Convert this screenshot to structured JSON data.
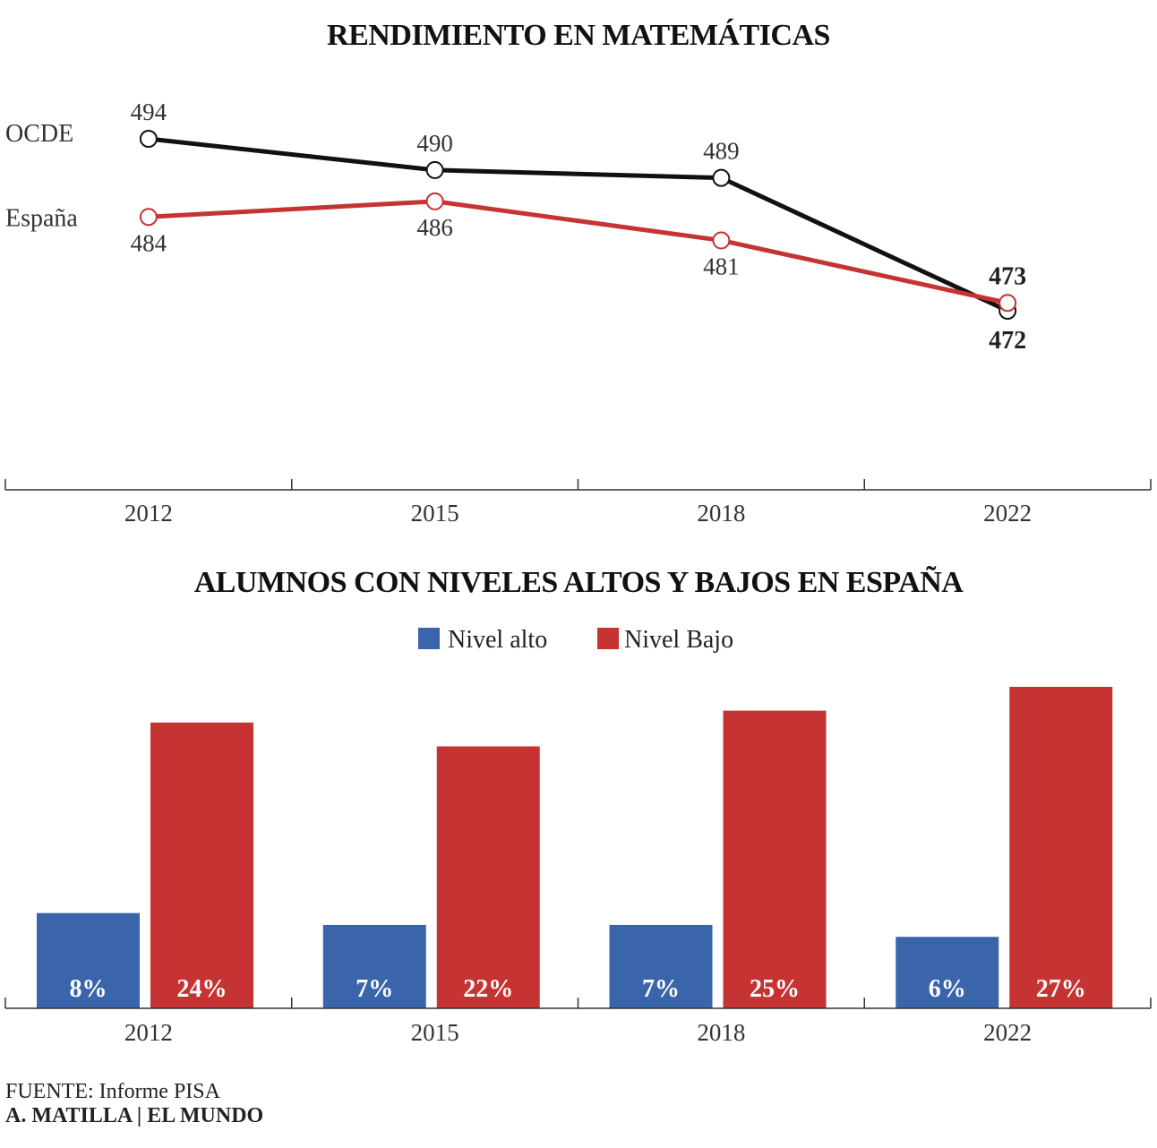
{
  "chart_data": [
    {
      "type": "line",
      "title": "RENDIMIENTO EN MATEMÁTICAS",
      "categories": [
        "2012",
        "2015",
        "2018",
        "2022"
      ],
      "series": [
        {
          "name": "OCDE",
          "values": [
            494,
            490,
            489,
            472
          ],
          "color": "#111111"
        },
        {
          "name": "España",
          "values": [
            484,
            486,
            481,
            473
          ],
          "color": "#c53332"
        }
      ],
      "point_labels": {
        "OCDE": [
          "494",
          "490",
          "489",
          "472"
        ],
        "España": [
          "484",
          "486",
          "481",
          "473"
        ]
      },
      "ylim": [
        455,
        500
      ],
      "grid": false
    },
    {
      "type": "bar",
      "title": "ALUMNOS CON NIVELES ALTOS Y BAJOS EN ESPAÑA",
      "categories": [
        "2012",
        "2015",
        "2018",
        "2022"
      ],
      "series": [
        {
          "name": "Nivel alto",
          "values": [
            8,
            7,
            7,
            6
          ],
          "labels": [
            "8%",
            "7%",
            "7%",
            "6%"
          ],
          "color": "#3a65ab"
        },
        {
          "name": "Nivel Bajo",
          "values": [
            24,
            22,
            25,
            27
          ],
          "labels": [
            "24%",
            "22%",
            "25%",
            "27%"
          ],
          "color": "#c53332"
        }
      ],
      "ylim": [
        0,
        27
      ],
      "legend": "top-center",
      "grid": false
    }
  ],
  "credits": {
    "source": "FUENTE: Informe PISA",
    "author": "A. MATILLA | EL MUNDO"
  }
}
